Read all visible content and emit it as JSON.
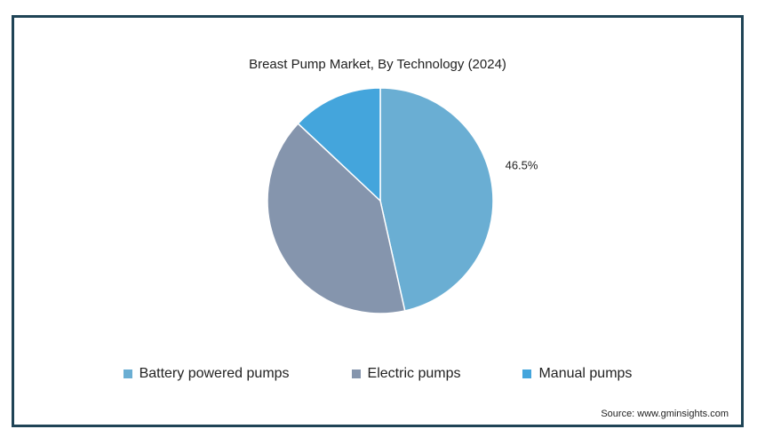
{
  "chart_data": {
    "type": "pie",
    "title": "Breast Pump Market, By Technology (2024)",
    "slices": [
      {
        "name": "Battery powered pumps",
        "value": 46.5,
        "label": "46.5%",
        "color": "#6aaed3"
      },
      {
        "name": "Electric pumps",
        "value": 40.5,
        "label": "",
        "color": "#8595ad"
      },
      {
        "name": "Manual pumps",
        "value": 13.0,
        "label": "",
        "color": "#44a5dc"
      }
    ],
    "legend": {
      "placement": "bottom"
    }
  },
  "source": "Source: www.gminsights.com"
}
